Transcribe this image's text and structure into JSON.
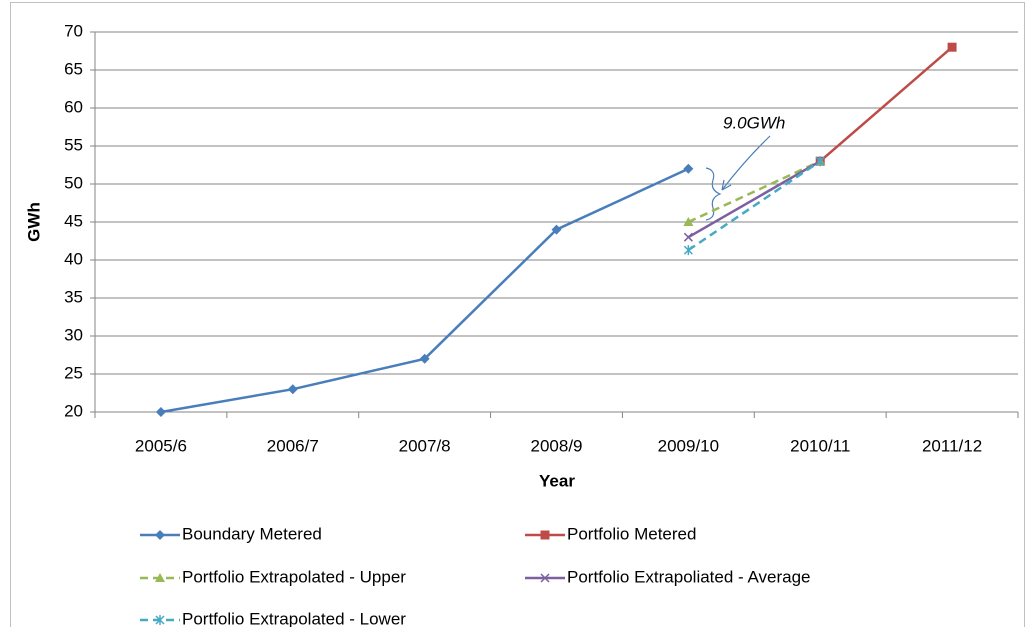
{
  "chart_data": {
    "type": "line",
    "categories": [
      "2005/6",
      "2006/7",
      "2007/8",
      "2008/9",
      "2009/10",
      "2010/11",
      "2011/12"
    ],
    "series": [
      {
        "name": "Boundary Metered",
        "color": "#4a7ebb",
        "marker": "diamond",
        "dashed": false,
        "values": [
          20,
          23,
          27,
          44,
          52,
          null,
          null
        ]
      },
      {
        "name": "Portfolio Metered",
        "color": "#be4b48",
        "marker": "square",
        "dashed": false,
        "values": [
          null,
          null,
          null,
          null,
          null,
          53,
          68
        ]
      },
      {
        "name": "Portfolio Extrapolated - Upper",
        "color": "#98b954",
        "marker": "triangle",
        "dashed": true,
        "values": [
          null,
          null,
          null,
          null,
          45,
          53,
          null
        ]
      },
      {
        "name": "Portfolio Extrapoliated - Average",
        "color": "#7d60a0",
        "marker": "x",
        "dashed": false,
        "values": [
          null,
          null,
          null,
          null,
          43,
          53,
          null
        ]
      },
      {
        "name": "Portfolio Extrapolated - Lower",
        "color": "#46aac5",
        "marker": "star",
        "dashed": true,
        "values": [
          null,
          null,
          null,
          null,
          41.3,
          53,
          null
        ]
      }
    ],
    "ylim": [
      20,
      70
    ],
    "yticks": [
      20,
      25,
      30,
      35,
      40,
      45,
      50,
      55,
      60,
      65,
      70
    ],
    "grid": true,
    "xlabel": "Year",
    "ylabel": "GWh",
    "annotation": "9.0GWh",
    "legend": "bottom"
  }
}
